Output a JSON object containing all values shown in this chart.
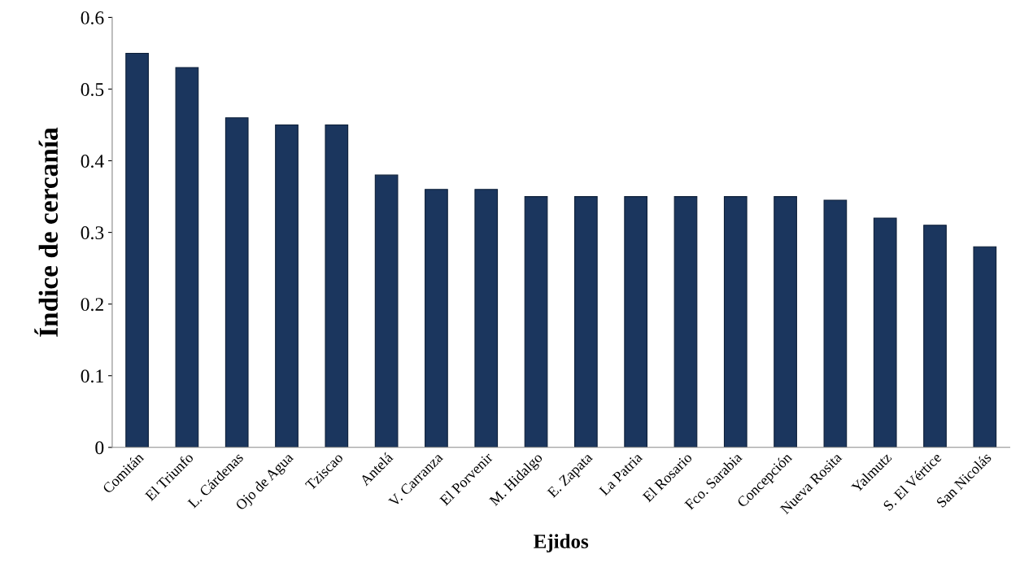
{
  "chart_data": {
    "type": "bar",
    "xlabel": "Ejidos",
    "ylabel": "Índice de cercanía",
    "categories": [
      "Comitán",
      "El Triunfo",
      "L. Cárdenas",
      "Ojo de Agua",
      "Tziscao",
      "Antelá",
      "V. Carranza",
      "El Porvenir",
      "M. Hidalgo",
      "E. Zapata",
      "La Patria",
      "El Rosario",
      "Fco. Sarabia",
      "Concepción",
      "Nueva Rosita",
      "Yalmutz",
      "S. El Vértice",
      "San Nicolás"
    ],
    "values": [
      0.55,
      0.53,
      0.46,
      0.45,
      0.45,
      0.38,
      0.36,
      0.36,
      0.35,
      0.35,
      0.35,
      0.35,
      0.35,
      0.35,
      0.345,
      0.32,
      0.31,
      0.28
    ],
    "color": "#1b365e",
    "ylim": [
      0,
      0.6
    ],
    "yticks": [
      0,
      {
        "value": 0.1,
        "label": "0.1"
      },
      {
        "value": 0.2,
        "label": "0.2"
      },
      {
        "value": 0.3,
        "label": "0.3"
      },
      {
        "value": 0.4,
        "label": "0.4"
      },
      {
        "value": 0.5,
        "label": "0.5"
      },
      {
        "value": 0.6,
        "label": "0.6"
      }
    ],
    "grid": false,
    "legend": false
  }
}
